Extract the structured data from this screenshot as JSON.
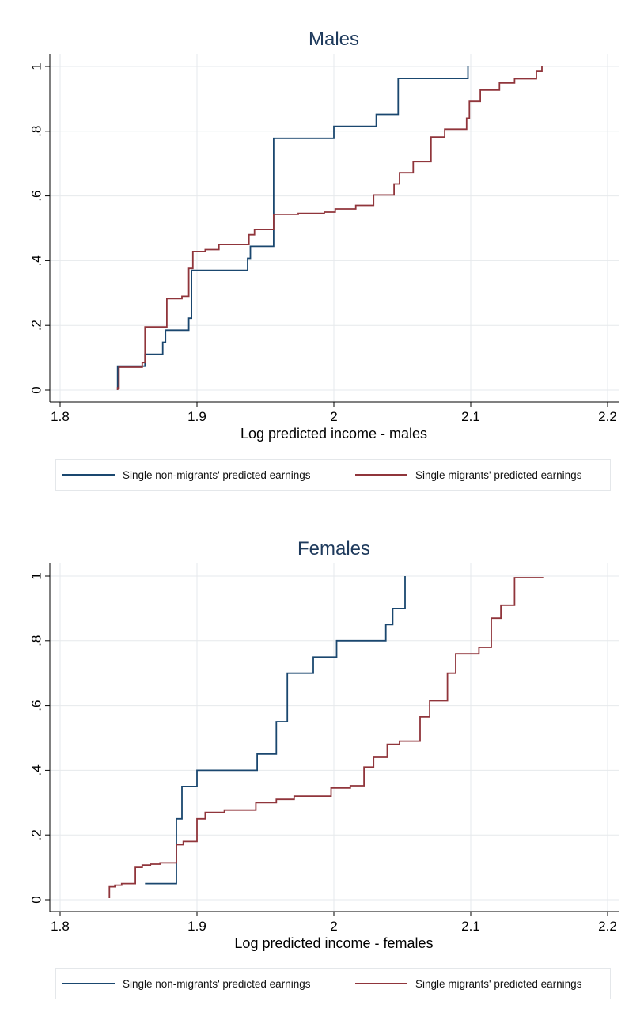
{
  "chart_data": [
    {
      "type": "line",
      "title": "Males",
      "xlabel": "Log predicted income - males",
      "ylabel": "",
      "xlim": [
        1.8,
        2.2
      ],
      "ylim": [
        0,
        1
      ],
      "xticks": [
        "1.8",
        "1.9",
        "2",
        "2.1",
        "2.2"
      ],
      "yticks": [
        "0",
        ".2",
        ".4",
        ".6",
        ".8",
        "1"
      ],
      "grid": true,
      "legend_position": "bottom",
      "series": [
        {
          "name": "Single non-migrants' predicted earnings",
          "color": "#1a476f",
          "x": [
            1.842,
            1.842,
            1.862,
            1.862,
            1.875,
            1.875,
            1.877,
            1.877,
            1.894,
            1.894,
            1.896,
            1.896,
            1.937,
            1.937,
            1.939,
            1.939,
            1.956,
            1.956,
            2.0,
            2.0,
            2.031,
            2.031,
            2.047,
            2.047,
            2.098,
            2.098
          ],
          "y": [
            0.0,
            0.074,
            0.074,
            0.111,
            0.111,
            0.148,
            0.148,
            0.185,
            0.185,
            0.222,
            0.222,
            0.37,
            0.37,
            0.407,
            0.407,
            0.444,
            0.444,
            0.778,
            0.778,
            0.815,
            0.815,
            0.852,
            0.852,
            0.963,
            0.963,
            1.0
          ]
        },
        {
          "name": "Single migrants' predicted earnings",
          "color": "#90353b",
          "x": [
            1.842,
            1.842,
            1.843,
            1.843,
            1.86,
            1.86,
            1.862,
            1.862,
            1.878,
            1.878,
            1.889,
            1.889,
            1.894,
            1.894,
            1.897,
            1.897,
            1.906,
            1.906,
            1.916,
            1.916,
            1.938,
            1.938,
            1.942,
            1.942,
            1.956,
            1.956,
            1.974,
            1.974,
            1.993,
            1.993,
            2.001,
            2.001,
            2.016,
            2.016,
            2.029,
            2.029,
            2.044,
            2.044,
            2.048,
            2.048,
            2.058,
            2.058,
            2.071,
            2.071,
            2.081,
            2.081,
            2.097,
            2.097,
            2.099,
            2.099,
            2.107,
            2.107,
            2.121,
            2.121,
            2.132,
            2.132,
            2.148,
            2.148,
            2.152,
            2.152
          ],
          "y": [
            0.0,
            0.007,
            0.007,
            0.071,
            0.071,
            0.085,
            0.085,
            0.195,
            0.195,
            0.283,
            0.283,
            0.29,
            0.29,
            0.376,
            0.376,
            0.428,
            0.428,
            0.434,
            0.434,
            0.45,
            0.45,
            0.48,
            0.48,
            0.496,
            0.496,
            0.543,
            0.543,
            0.546,
            0.546,
            0.55,
            0.55,
            0.56,
            0.56,
            0.571,
            0.571,
            0.603,
            0.603,
            0.637,
            0.637,
            0.672,
            0.672,
            0.706,
            0.706,
            0.782,
            0.782,
            0.806,
            0.806,
            0.84,
            0.84,
            0.892,
            0.892,
            0.927,
            0.927,
            0.949,
            0.949,
            0.962,
            0.962,
            0.985,
            0.985,
            1.0
          ]
        }
      ]
    },
    {
      "type": "line",
      "title": "Females",
      "xlabel": "Log predicted income - females",
      "ylabel": "",
      "xlim": [
        1.8,
        2.2
      ],
      "ylim": [
        0,
        1
      ],
      "xticks": [
        "1.8",
        "1.9",
        "2",
        "2.1",
        "2.2"
      ],
      "yticks": [
        "0",
        ".2",
        ".4",
        ".6",
        ".8",
        "1"
      ],
      "grid": true,
      "legend_position": "bottom",
      "series": [
        {
          "name": "Single non-migrants' predicted earnings",
          "color": "#1a476f",
          "x": [
            1.862,
            1.885,
            1.885,
            1.889,
            1.889,
            1.9,
            1.9,
            1.944,
            1.944,
            1.958,
            1.958,
            1.966,
            1.966,
            1.985,
            1.985,
            2.002,
            2.002,
            2.038,
            2.038,
            2.043,
            2.043,
            2.052,
            2.052
          ],
          "y": [
            0.05,
            0.05,
            0.25,
            0.25,
            0.35,
            0.35,
            0.4,
            0.4,
            0.45,
            0.45,
            0.55,
            0.55,
            0.7,
            0.7,
            0.75,
            0.75,
            0.8,
            0.8,
            0.85,
            0.85,
            0.9,
            0.9,
            1.0
          ]
        },
        {
          "name": "Single migrants' predicted earnings",
          "color": "#90353b",
          "x": [
            1.836,
            1.836,
            1.84,
            1.84,
            1.845,
            1.845,
            1.855,
            1.855,
            1.86,
            1.86,
            1.866,
            1.866,
            1.873,
            1.873,
            1.885,
            1.885,
            1.89,
            1.89,
            1.9,
            1.9,
            1.906,
            1.906,
            1.92,
            1.92,
            1.943,
            1.943,
            1.958,
            1.958,
            1.971,
            1.971,
            1.998,
            1.998,
            2.012,
            2.012,
            2.022,
            2.022,
            2.029,
            2.029,
            2.039,
            2.039,
            2.048,
            2.048,
            2.063,
            2.063,
            2.07,
            2.07,
            2.083,
            2.083,
            2.089,
            2.089,
            2.106,
            2.106,
            2.115,
            2.115,
            2.122,
            2.122,
            2.132,
            2.132,
            2.153
          ],
          "y": [
            0.005,
            0.04,
            0.04,
            0.045,
            0.045,
            0.05,
            0.05,
            0.1,
            0.1,
            0.107,
            0.107,
            0.11,
            0.11,
            0.114,
            0.114,
            0.17,
            0.17,
            0.18,
            0.18,
            0.25,
            0.25,
            0.27,
            0.27,
            0.277,
            0.277,
            0.3,
            0.3,
            0.31,
            0.31,
            0.32,
            0.32,
            0.345,
            0.345,
            0.352,
            0.352,
            0.41,
            0.41,
            0.44,
            0.44,
            0.48,
            0.48,
            0.49,
            0.49,
            0.565,
            0.565,
            0.615,
            0.615,
            0.7,
            0.7,
            0.76,
            0.76,
            0.78,
            0.78,
            0.87,
            0.87,
            0.91,
            0.91,
            0.995,
            0.995
          ]
        }
      ]
    }
  ]
}
